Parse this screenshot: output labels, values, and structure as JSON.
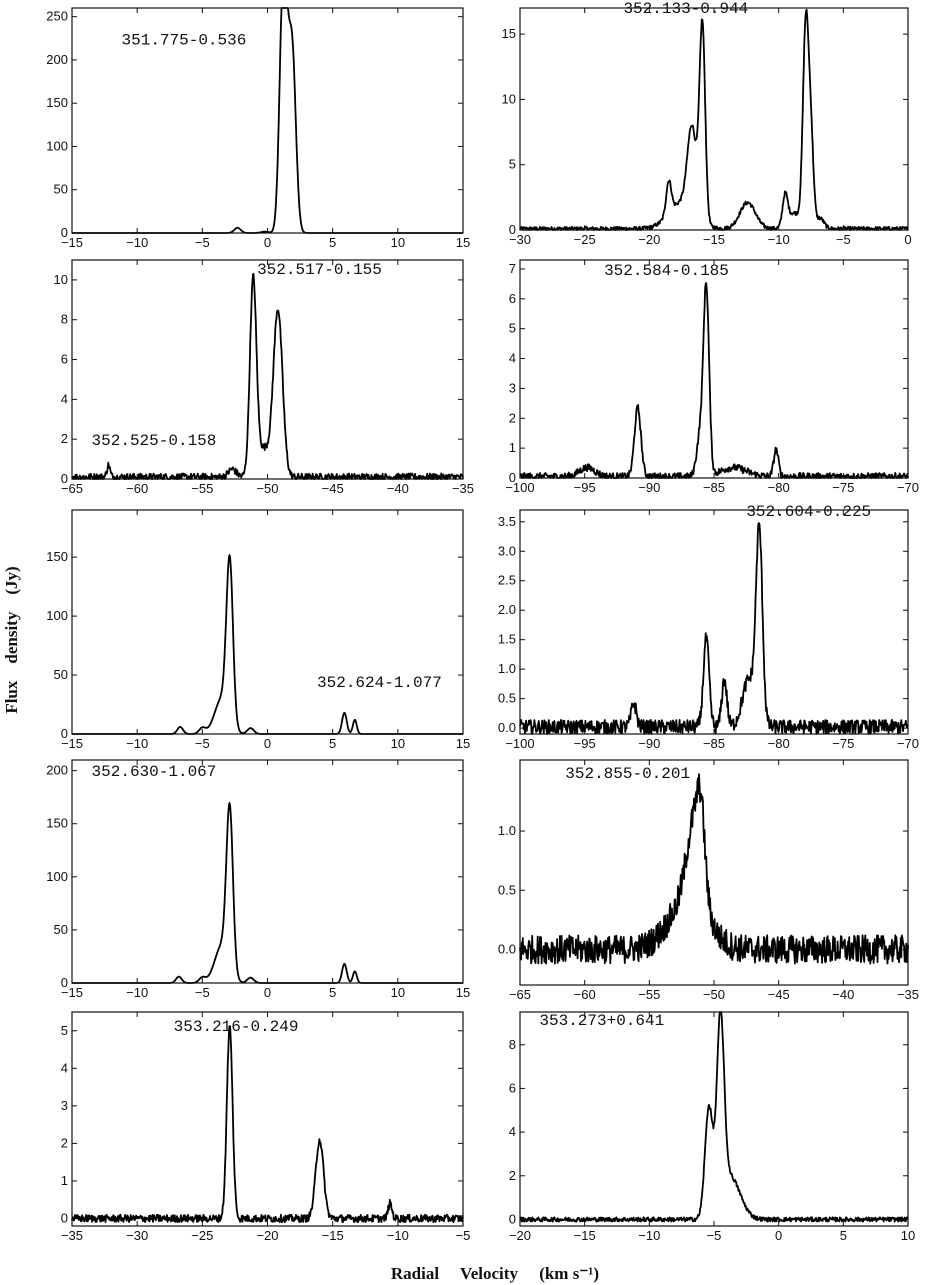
{
  "figure": {
    "xlabel": "Radial     Velocity     (km s⁻¹)",
    "ylabel": "Flux    density    (Jy)"
  },
  "chart_data": [
    {
      "type": "line",
      "labels": [
        {
          "text": "351.775-0.536",
          "x": -11.2,
          "y": 218
        }
      ],
      "xlim": [
        -15,
        15
      ],
      "ylim": [
        0,
        260
      ],
      "xticks": [
        -15,
        -10,
        -5,
        0,
        5,
        10,
        15
      ],
      "xtick_labels": [
        "−15",
        "−10",
        "−5",
        "0",
        "5",
        "10",
        "15"
      ],
      "yticks": [
        0,
        50,
        100,
        150,
        200,
        250
      ],
      "ytick_labels": [
        "0",
        "50",
        "100",
        "150",
        "200",
        "250"
      ],
      "noise": 0,
      "baseline": 0,
      "peaks": [
        [
          -2.3,
          6,
          0.25
        ],
        [
          -0.2,
          1.5,
          0.3
        ],
        [
          1.1,
          100,
          0.25
        ],
        [
          1.3,
          225,
          0.28
        ],
        [
          1.9,
          205,
          0.28
        ]
      ]
    },
    {
      "type": "line",
      "labels": [
        {
          "text": "352.133-0.944",
          "x": -22,
          "y": 16.6
        }
      ],
      "xlim": [
        -30,
        0
      ],
      "ylim": [
        0,
        17
      ],
      "xticks": [
        -30,
        -25,
        -20,
        -15,
        -10,
        -5,
        0
      ],
      "xtick_labels": [
        "−30",
        "−25",
        "−20",
        "−15",
        "−10",
        "−5",
        "0"
      ],
      "yticks": [
        0,
        5,
        10,
        15
      ],
      "ytick_labels": [
        "0",
        "5",
        "10",
        "15"
      ],
      "noise": 0.15,
      "baseline": 0.1,
      "peaks": [
        [
          -18.5,
          2.5,
          0.2
        ],
        [
          -17.5,
          2,
          1.0
        ],
        [
          -16.7,
          6.5,
          0.35
        ],
        [
          -15.9,
          15,
          0.22
        ],
        [
          -12.4,
          2,
          0.6
        ],
        [
          -9.5,
          2.3,
          0.2
        ],
        [
          -8.8,
          1.2,
          0.5
        ],
        [
          -7.9,
          15.5,
          0.22
        ],
        [
          -7.5,
          6.5,
          0.2
        ],
        [
          -6.8,
          0.8,
          0.3
        ]
      ]
    },
    {
      "type": "line",
      "labels": [
        {
          "text": "352.517-0.155",
          "x": -50.8,
          "y": 10.3
        },
        {
          "text": "352.525-0.158",
          "x": -63.5,
          "y": 1.7
        }
      ],
      "xlim": [
        -65,
        -35
      ],
      "ylim": [
        0,
        11
      ],
      "xticks": [
        -65,
        -60,
        -55,
        -50,
        -45,
        -40,
        -35
      ],
      "xtick_labels": [
        "−65",
        "−60",
        "−55",
        "−50",
        "−45",
        "−40",
        "−35"
      ],
      "yticks": [
        0,
        2,
        4,
        6,
        8,
        10
      ],
      "ytick_labels": [
        "0",
        "2",
        "4",
        "6",
        "8",
        "10"
      ],
      "noise": 0.18,
      "baseline": 0.1,
      "peaks": [
        [
          -62.2,
          0.6,
          0.12
        ],
        [
          -52.7,
          0.4,
          0.3
        ],
        [
          -51.1,
          9.8,
          0.25
        ],
        [
          -50.3,
          1.4,
          0.45
        ],
        [
          -49.2,
          8.4,
          0.35
        ]
      ]
    },
    {
      "type": "line",
      "labels": [
        {
          "text": "352.584-0.185",
          "x": -93.5,
          "y": 6.8
        }
      ],
      "xlim": [
        -100,
        -70
      ],
      "ylim": [
        0,
        7.3
      ],
      "xticks": [
        -100,
        -95,
        -90,
        -85,
        -80,
        -75,
        -70
      ],
      "xtick_labels": [
        "−100",
        "−95",
        "−90",
        "−85",
        "−80",
        "−75",
        "−70"
      ],
      "yticks": [
        0,
        1,
        2,
        3,
        4,
        5,
        6,
        7
      ],
      "ytick_labels": [
        "0",
        "1",
        "2",
        "3",
        "4",
        "5",
        "6",
        "7"
      ],
      "noise": 0.12,
      "baseline": 0.05,
      "peaks": [
        [
          -94.8,
          0.3,
          0.6
        ],
        [
          -90.9,
          2.3,
          0.25
        ],
        [
          -86.1,
          1.3,
          0.25
        ],
        [
          -85.6,
          6.3,
          0.22
        ],
        [
          -83.5,
          0.3,
          1.0
        ],
        [
          -80.2,
          0.9,
          0.18
        ]
      ]
    },
    {
      "type": "line",
      "labels": [
        {
          "text": "352.624-1.077",
          "x": 3.8,
          "y": 40
        }
      ],
      "xlim": [
        -15,
        15
      ],
      "ylim": [
        0,
        190
      ],
      "xticks": [
        -15,
        -10,
        -5,
        0,
        5,
        10,
        15
      ],
      "xtick_labels": [
        "−15",
        "−10",
        "−5",
        "0",
        "5",
        "10",
        "15"
      ],
      "yticks": [
        0,
        50,
        100,
        150
      ],
      "ytick_labels": [
        "0",
        "50",
        "100",
        "150"
      ],
      "noise": 0,
      "baseline": 0,
      "peaks": [
        [
          -6.7,
          6,
          0.22
        ],
        [
          -5.0,
          5,
          0.25
        ],
        [
          -3.5,
          30,
          0.55
        ],
        [
          -2.9,
          135,
          0.25
        ],
        [
          -1.3,
          5,
          0.25
        ],
        [
          5.9,
          18,
          0.18
        ],
        [
          6.7,
          12,
          0.15
        ]
      ]
    },
    {
      "type": "line",
      "labels": [
        {
          "text": "352.604-0.225",
          "x": -82.5,
          "y": 3.6
        }
      ],
      "xlim": [
        -100,
        -70
      ],
      "ylim": [
        -0.1,
        3.7
      ],
      "xticks": [
        -100,
        -95,
        -90,
        -85,
        -80,
        -75,
        -70
      ],
      "xtick_labels": [
        "−100",
        "−95",
        "−90",
        "−85",
        "−80",
        "−75",
        "−70"
      ],
      "yticks": [
        0,
        0.5,
        1,
        1.5,
        2,
        2.5,
        3,
        3.5
      ],
      "ytick_labels": [
        "0.0",
        "0.5",
        "1.0",
        "1.5",
        "2.0",
        "2.5",
        "3.0",
        "3.5"
      ],
      "noise": 0.12,
      "baseline": 0.02,
      "peaks": [
        [
          -91.2,
          0.4,
          0.2
        ],
        [
          -85.6,
          1.5,
          0.22
        ],
        [
          -84.2,
          0.8,
          0.2
        ],
        [
          -82.3,
          0.8,
          0.5
        ],
        [
          -81.5,
          3.2,
          0.25
        ]
      ]
    },
    {
      "type": "line",
      "labels": [
        {
          "text": "352.630-1.067",
          "x": -13.5,
          "y": 195
        }
      ],
      "xlim": [
        -15,
        15
      ],
      "ylim": [
        0,
        210
      ],
      "xticks": [
        -15,
        -10,
        -5,
        0,
        5,
        10,
        15
      ],
      "xtick_labels": [
        "−15",
        "−10",
        "−5",
        "0",
        "5",
        "10",
        "15"
      ],
      "yticks": [
        0,
        50,
        100,
        150,
        200
      ],
      "ytick_labels": [
        "0",
        "50",
        "100",
        "150",
        "200"
      ],
      "noise": 0,
      "baseline": 0,
      "peaks": [
        [
          -6.8,
          6,
          0.22
        ],
        [
          -5.0,
          5,
          0.25
        ],
        [
          -3.5,
          35,
          0.55
        ],
        [
          -2.9,
          150,
          0.25
        ],
        [
          -1.3,
          5,
          0.25
        ],
        [
          5.9,
          18,
          0.18
        ],
        [
          6.7,
          11,
          0.15
        ]
      ]
    },
    {
      "type": "line",
      "labels": [
        {
          "text": "352.855-0.201",
          "x": -61.5,
          "y": 1.45
        }
      ],
      "xlim": [
        -65,
        -35
      ],
      "ylim": [
        -0.3,
        1.6
      ],
      "xticks": [
        -65,
        -60,
        -55,
        -50,
        -45,
        -40,
        -35
      ],
      "xtick_labels": [
        "−65",
        "−60",
        "−55",
        "−50",
        "−45",
        "−40",
        "−35"
      ],
      "yticks": [
        0,
        0.5,
        1
      ],
      "ytick_labels": [
        "0.0",
        "0.5",
        "1.0"
      ],
      "noise": 0.12,
      "baseline": 0.0,
      "peaks": [
        [
          -52.0,
          0.4,
          1.5
        ],
        [
          -51.5,
          0.7,
          0.6
        ],
        [
          -51.0,
          0.5,
          0.3
        ]
      ]
    },
    {
      "type": "line",
      "labels": [
        {
          "text": "353.216-0.249",
          "x": -27.2,
          "y": 5.0
        }
      ],
      "xlim": [
        -35,
        -5
      ],
      "ylim": [
        -0.2,
        5.5
      ],
      "xticks": [
        -35,
        -30,
        -25,
        -20,
        -15,
        -10,
        -5
      ],
      "xtick_labels": [
        "−35",
        "−30",
        "−25",
        "−20",
        "−15",
        "−10",
        "−5"
      ],
      "yticks": [
        0,
        1,
        2,
        3,
        4,
        5
      ],
      "ytick_labels": [
        "0",
        "1",
        "2",
        "3",
        "4",
        "5"
      ],
      "noise": 0.1,
      "baseline": 0.0,
      "peaks": [
        [
          -22.9,
          5.1,
          0.22
        ],
        [
          -16.0,
          2.1,
          0.3
        ],
        [
          -10.6,
          0.4,
          0.15
        ]
      ]
    },
    {
      "type": "line",
      "labels": [
        {
          "text": "353.273+0.641",
          "x": -18.5,
          "y": 8.9
        }
      ],
      "xlim": [
        -20,
        10
      ],
      "ylim": [
        -0.3,
        9.5
      ],
      "xticks": [
        -20,
        -15,
        -10,
        -5,
        0,
        5,
        10
      ],
      "xtick_labels": [
        "−20",
        "−15",
        "−10",
        "−5",
        "0",
        "5",
        "10"
      ],
      "yticks": [
        0,
        2,
        4,
        6,
        8
      ],
      "ytick_labels": [
        "0",
        "2",
        "4",
        "6",
        "8"
      ],
      "noise": 0.1,
      "baseline": 0.0,
      "peaks": [
        [
          -5.4,
          4.9,
          0.3
        ],
        [
          -4.5,
          8.2,
          0.28
        ],
        [
          -3.8,
          2.0,
          0.8
        ]
      ]
    }
  ]
}
